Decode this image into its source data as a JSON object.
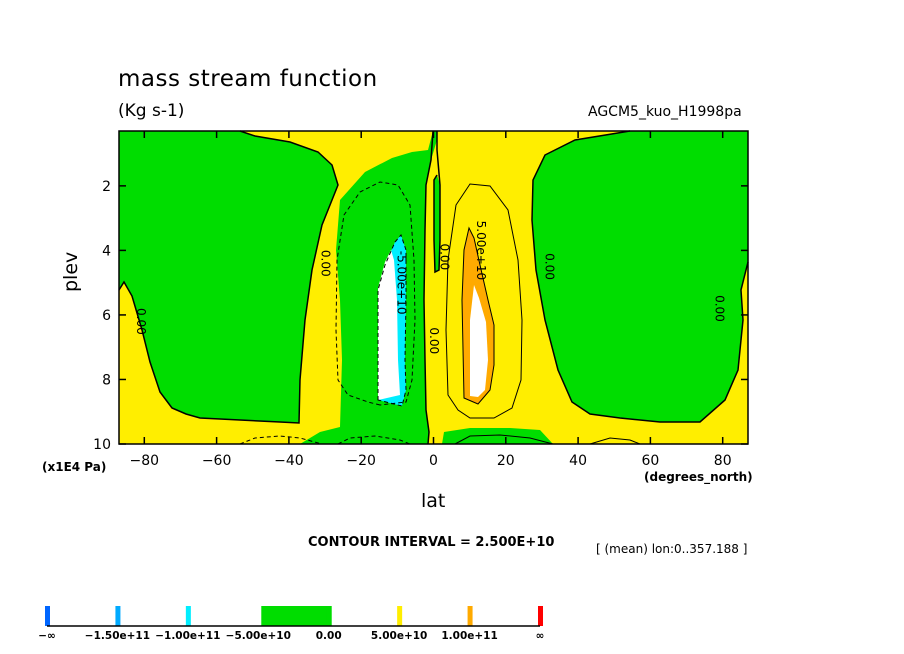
{
  "chart_data": {
    "type": "contour",
    "title": "mass stream function",
    "units": "(Kg s-1)",
    "dataset": "AGCM5_kuo_H1998pa",
    "xlabel": "lat",
    "ylabel": "plev",
    "x_units": "(degrees_north)",
    "y_units": "(x1E4 Pa)",
    "xlim": [
      -87,
      87
    ],
    "ylim": [
      10,
      0.3
    ],
    "x_ticks": [
      -80,
      -60,
      -40,
      -20,
      0,
      20,
      40,
      60,
      80
    ],
    "y_ticks": [
      2,
      4,
      6,
      8,
      10
    ],
    "contour_interval": "CONTOUR INTERVAL = 2.500E+10",
    "averaging": "[ (mean) lon:0..357.188 ]",
    "contour_labels": [
      {
        "text": "0.00",
        "x": -82,
        "y": 6.2
      },
      {
        "text": "0.00",
        "x": -31,
        "y": 4.4
      },
      {
        "text": "-5.00e+10",
        "x": -10,
        "y": 5.0
      },
      {
        "text": "0.00",
        "x": 2,
        "y": 4.2
      },
      {
        "text": "0.00",
        "x": -1,
        "y": 6.8
      },
      {
        "text": "5.00e+10",
        "x": 12,
        "y": 4.0
      },
      {
        "text": "0.00",
        "x": 31,
        "y": 4.5
      },
      {
        "text": "0.00",
        "x": 78,
        "y": 5.8
      }
    ],
    "color_scale": {
      "labels": [
        "-∞",
        "-1.50e+11",
        "-1.00e+11",
        "-5.00e+10",
        "0.00",
        "5.00e+10",
        "1.00e+11",
        "∞"
      ],
      "colors": [
        "#0066ff",
        "#00aaff",
        "#00eeff",
        "#ffffff",
        "#00dd00",
        "#ffee00",
        "#ffaa00",
        "#ff0000"
      ]
    }
  }
}
